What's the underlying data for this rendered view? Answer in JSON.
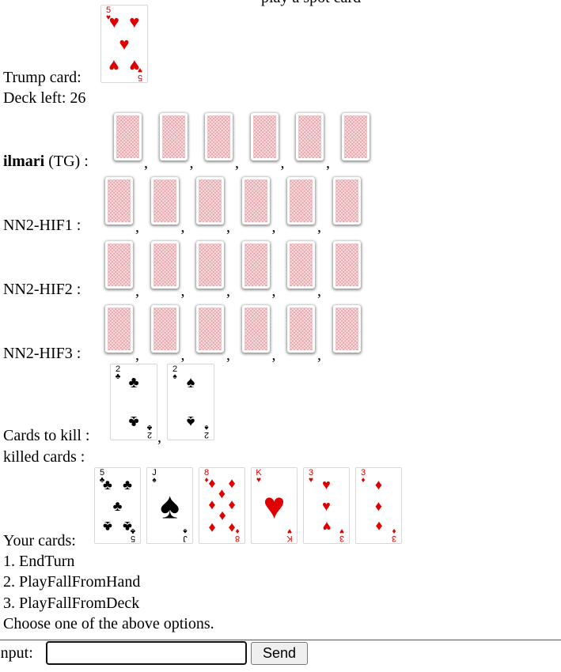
{
  "header": {
    "cut_text": "play a spot card"
  },
  "trump": {
    "label": "Trump card:",
    "rank": "5",
    "suit": "♥"
  },
  "deck": {
    "label": "Deck left: 26"
  },
  "players": [
    {
      "name": "ilmari",
      "tag": "(TG) :",
      "cards": 6
    },
    {
      "name": "NN2-HIF1 :",
      "cards": 6
    },
    {
      "name": "NN2-HIF2 :",
      "cards": 6
    },
    {
      "name": "NN2-HIF3 :",
      "cards": 6
    }
  ],
  "to_kill": {
    "label": "Cards to kill :",
    "cards": [
      {
        "rank": "2",
        "suit": "♣"
      },
      {
        "rank": "2",
        "suit": "♠"
      }
    ]
  },
  "killed": {
    "label": "killed cards :"
  },
  "hand": {
    "label": "Your cards:",
    "cards": [
      {
        "rank": "5",
        "suit": "♣"
      },
      {
        "rank": "J",
        "suit": "♠"
      },
      {
        "rank": "8",
        "suit": "♦"
      },
      {
        "rank": "K",
        "suit": "♥"
      },
      {
        "rank": "3",
        "suit": "♥"
      },
      {
        "rank": "3",
        "suit": "♦"
      }
    ]
  },
  "options": [
    "1. EndTurn",
    "2. PlayFallFromHand",
    "3. PlayFallFromDeck"
  ],
  "prompt": "Choose one of the above options.",
  "input": {
    "label": "Input:",
    "value": "",
    "send_label": "Send"
  },
  "colors": {
    "red_suit": "#e00000",
    "black_suit": "#000000",
    "card_back": "#e7a3aa"
  }
}
